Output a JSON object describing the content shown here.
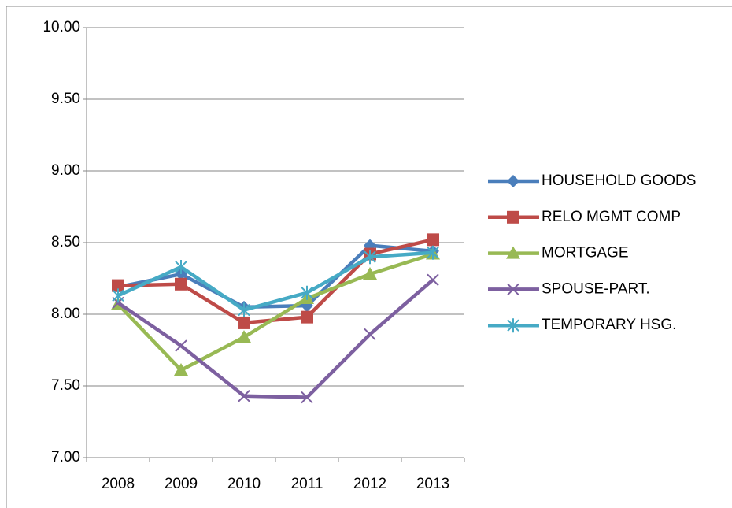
{
  "chart_data": {
    "type": "line",
    "categories": [
      "2008",
      "2009",
      "2010",
      "2011",
      "2012",
      "2013"
    ],
    "series": [
      {
        "name": "HOUSEHOLD GOODS",
        "color": "#4a7ebb",
        "marker": "diamond",
        "values": [
          8.19,
          8.28,
          8.05,
          8.06,
          8.48,
          8.44
        ]
      },
      {
        "name": "RELO MGMT COMP",
        "color": "#be4b48",
        "marker": "square",
        "values": [
          8.2,
          8.21,
          7.94,
          7.98,
          8.42,
          8.52
        ]
      },
      {
        "name": "MORTGAGE",
        "color": "#98b954",
        "marker": "triangle",
        "values": [
          8.07,
          7.61,
          7.84,
          8.11,
          8.28,
          8.42
        ]
      },
      {
        "name": "SPOUSE-PART.",
        "color": "#7d60a0",
        "marker": "x",
        "values": [
          8.08,
          7.78,
          7.43,
          7.42,
          7.86,
          8.24
        ]
      },
      {
        "name": "TEMPORARY HSG.",
        "color": "#46aac5",
        "marker": "star",
        "values": [
          8.13,
          8.33,
          8.03,
          8.15,
          8.4,
          8.43
        ]
      }
    ],
    "ylim": [
      7,
      10
    ],
    "yticks": [
      {
        "value": 7,
        "label": "7.00"
      },
      {
        "value": 7.5,
        "label": "7.50"
      },
      {
        "value": 8,
        "label": "8.00"
      },
      {
        "value": 8.5,
        "label": "8.50"
      },
      {
        "value": 9,
        "label": "9.00"
      },
      {
        "value": 9.5,
        "label": "9.50"
      },
      {
        "value": 10,
        "label": "10.00"
      }
    ],
    "grid": true,
    "legend": "right"
  }
}
